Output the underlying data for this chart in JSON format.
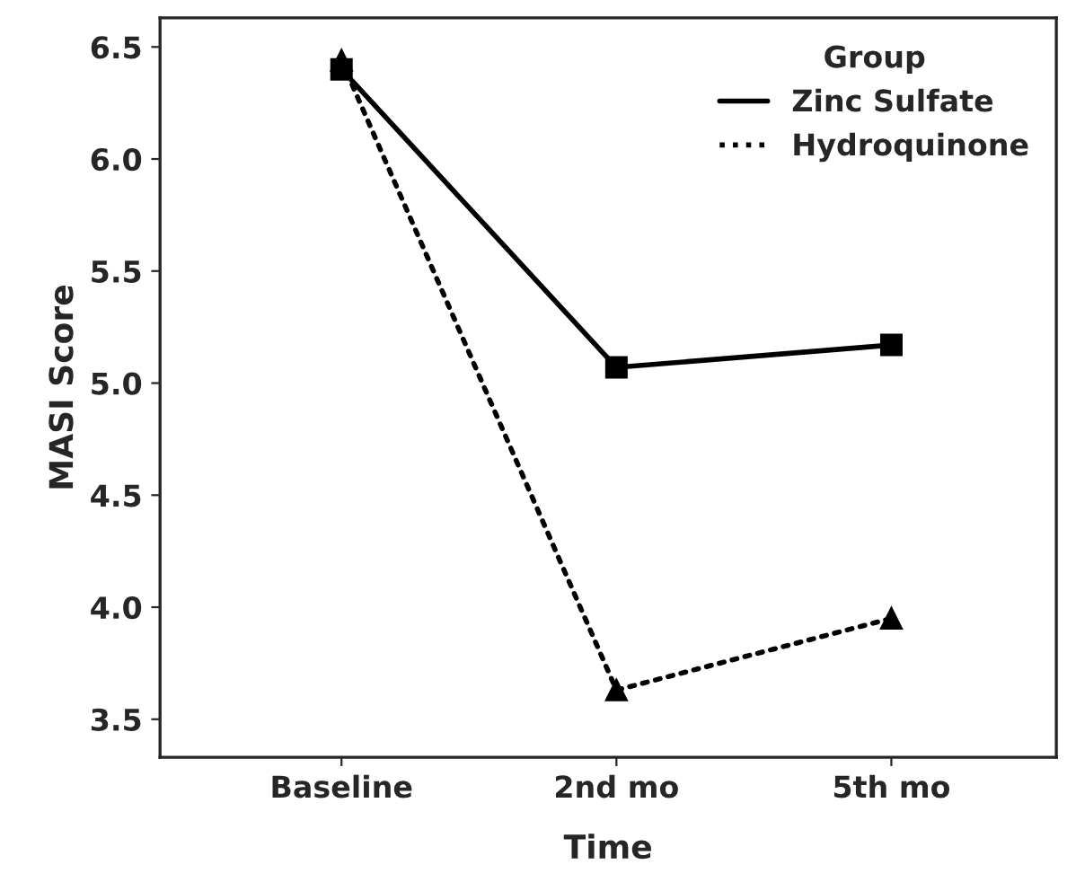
{
  "chart_data": {
    "type": "line",
    "xlabel": "Time",
    "ylabel": "MASI Score",
    "legend_title": "Group",
    "legend": "top right",
    "categories": [
      "Baseline",
      "2nd mo",
      "5th mo"
    ],
    "series": [
      {
        "name": "Zinc Sulfate",
        "color": "#000000",
        "values": [
          6.4,
          5.07,
          5.17
        ],
        "marker": "square",
        "line_style": "solid"
      },
      {
        "name": "Hydroquinone",
        "color": "#000000",
        "values": [
          6.44,
          3.63,
          3.95
        ],
        "marker": "triangle",
        "line_style": "dotted"
      }
    ],
    "ylim": [
      3.33,
      6.63
    ],
    "yticks": [
      {
        "value": 3.5,
        "label": "3.5"
      },
      {
        "value": 4.0,
        "label": "4.0"
      },
      {
        "value": 4.5,
        "label": "4.5"
      },
      {
        "value": 5.0,
        "label": "5.0"
      },
      {
        "value": 5.5,
        "label": "5.5"
      },
      {
        "value": 6.0,
        "label": "6.0"
      },
      {
        "value": 6.5,
        "label": "6.5"
      }
    ],
    "grid": false
  }
}
